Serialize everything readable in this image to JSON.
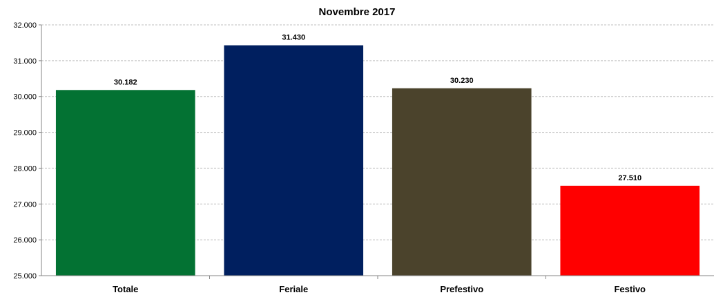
{
  "chart_data": {
    "type": "bar",
    "title": "Novembre 2017",
    "xlabel": "",
    "ylabel": "",
    "categories": [
      "Totale",
      "Feriale",
      "Prefestivo",
      "Festivo"
    ],
    "values": [
      30182,
      31430,
      30230,
      27510
    ],
    "value_labels": [
      "30.182",
      "31.430",
      "30.230",
      "27.510"
    ],
    "colors": [
      "#037233",
      "#001f5f",
      "#4b432c",
      "#ff0000"
    ],
    "ylim": [
      25000,
      32000
    ],
    "yticks": [
      25000,
      26000,
      27000,
      28000,
      29000,
      30000,
      31000,
      32000
    ],
    "ytick_labels": [
      "25.000",
      "26.000",
      "27.000",
      "28.000",
      "29.000",
      "30.000",
      "31.000",
      "32.000"
    ],
    "grid": true,
    "legend": "none"
  }
}
